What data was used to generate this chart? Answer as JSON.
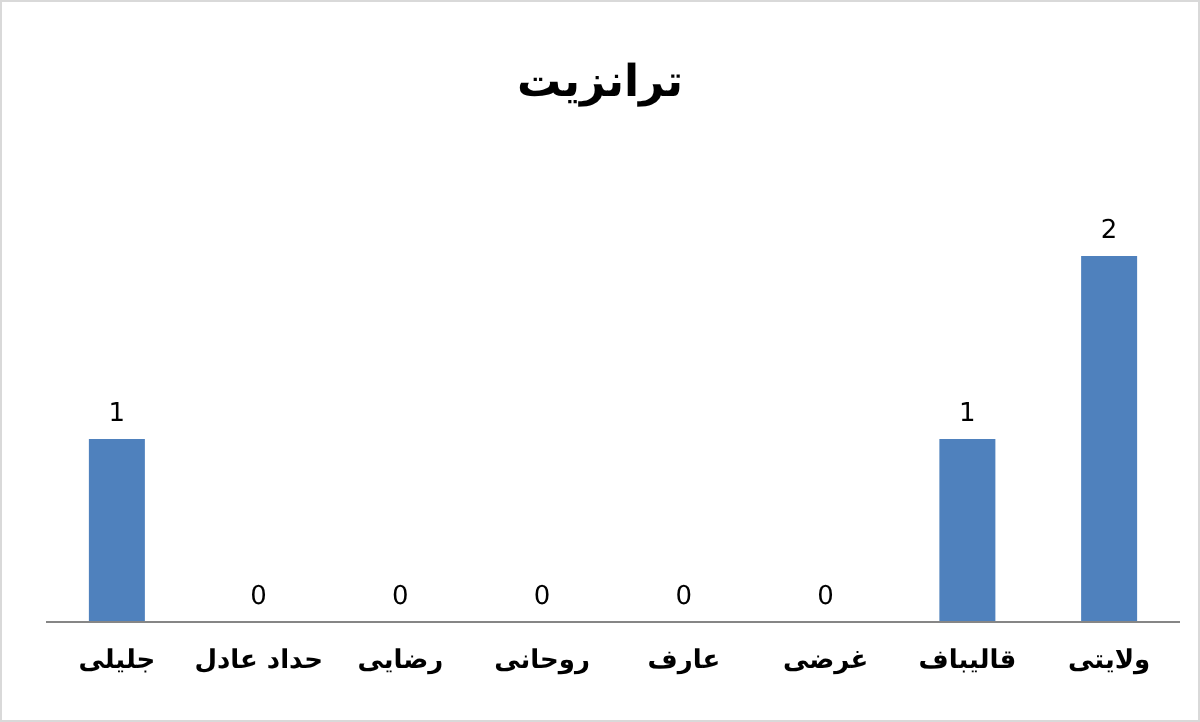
{
  "chart_data": {
    "type": "bar",
    "title": "ترانزیت",
    "categories": [
      "جلیلی",
      "حداد عادل",
      "رضایی",
      "روحانی",
      "عارف",
      "غرضی",
      "قالیباف",
      "ولایتی"
    ],
    "values": [
      1,
      0,
      0,
      0,
      0,
      0,
      1,
      2
    ],
    "color": "#4f81bd",
    "data_labels": true
  }
}
